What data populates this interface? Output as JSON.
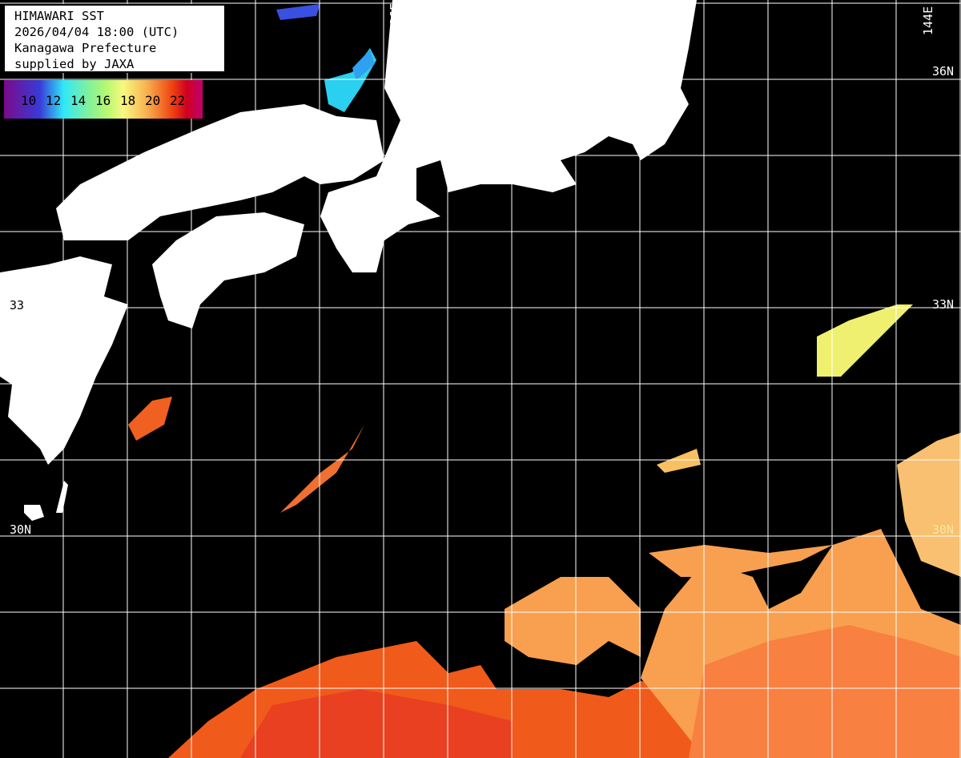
{
  "info_box": {
    "lines": [
      "HIMAWARI SST",
      "2026/04/04 18:00 (UTC)",
      "Kanagawa Prefecture",
      "supplied by JAXA"
    ]
  },
  "legend": {
    "ticks": [
      "10",
      "12",
      "14",
      "16",
      "18",
      "20",
      "22"
    ],
    "colors": [
      "#7a0a8a",
      "#3a3ad8",
      "#2fe8f8",
      "#b8f870",
      "#f8f880",
      "#f8b050",
      "#f04010",
      "#c00070"
    ]
  },
  "grid_labels": {
    "lon_136": "136E",
    "lon_144": "144E",
    "lat_36_right": "36N",
    "lat_33_right": "33N",
    "lat_33_left": "33",
    "lat_30_left": "30N",
    "lat_30_right": "30N"
  },
  "colors": {
    "land": "#ffffff",
    "ocean_nodata": "#000000",
    "grid": "#ffffff"
  }
}
